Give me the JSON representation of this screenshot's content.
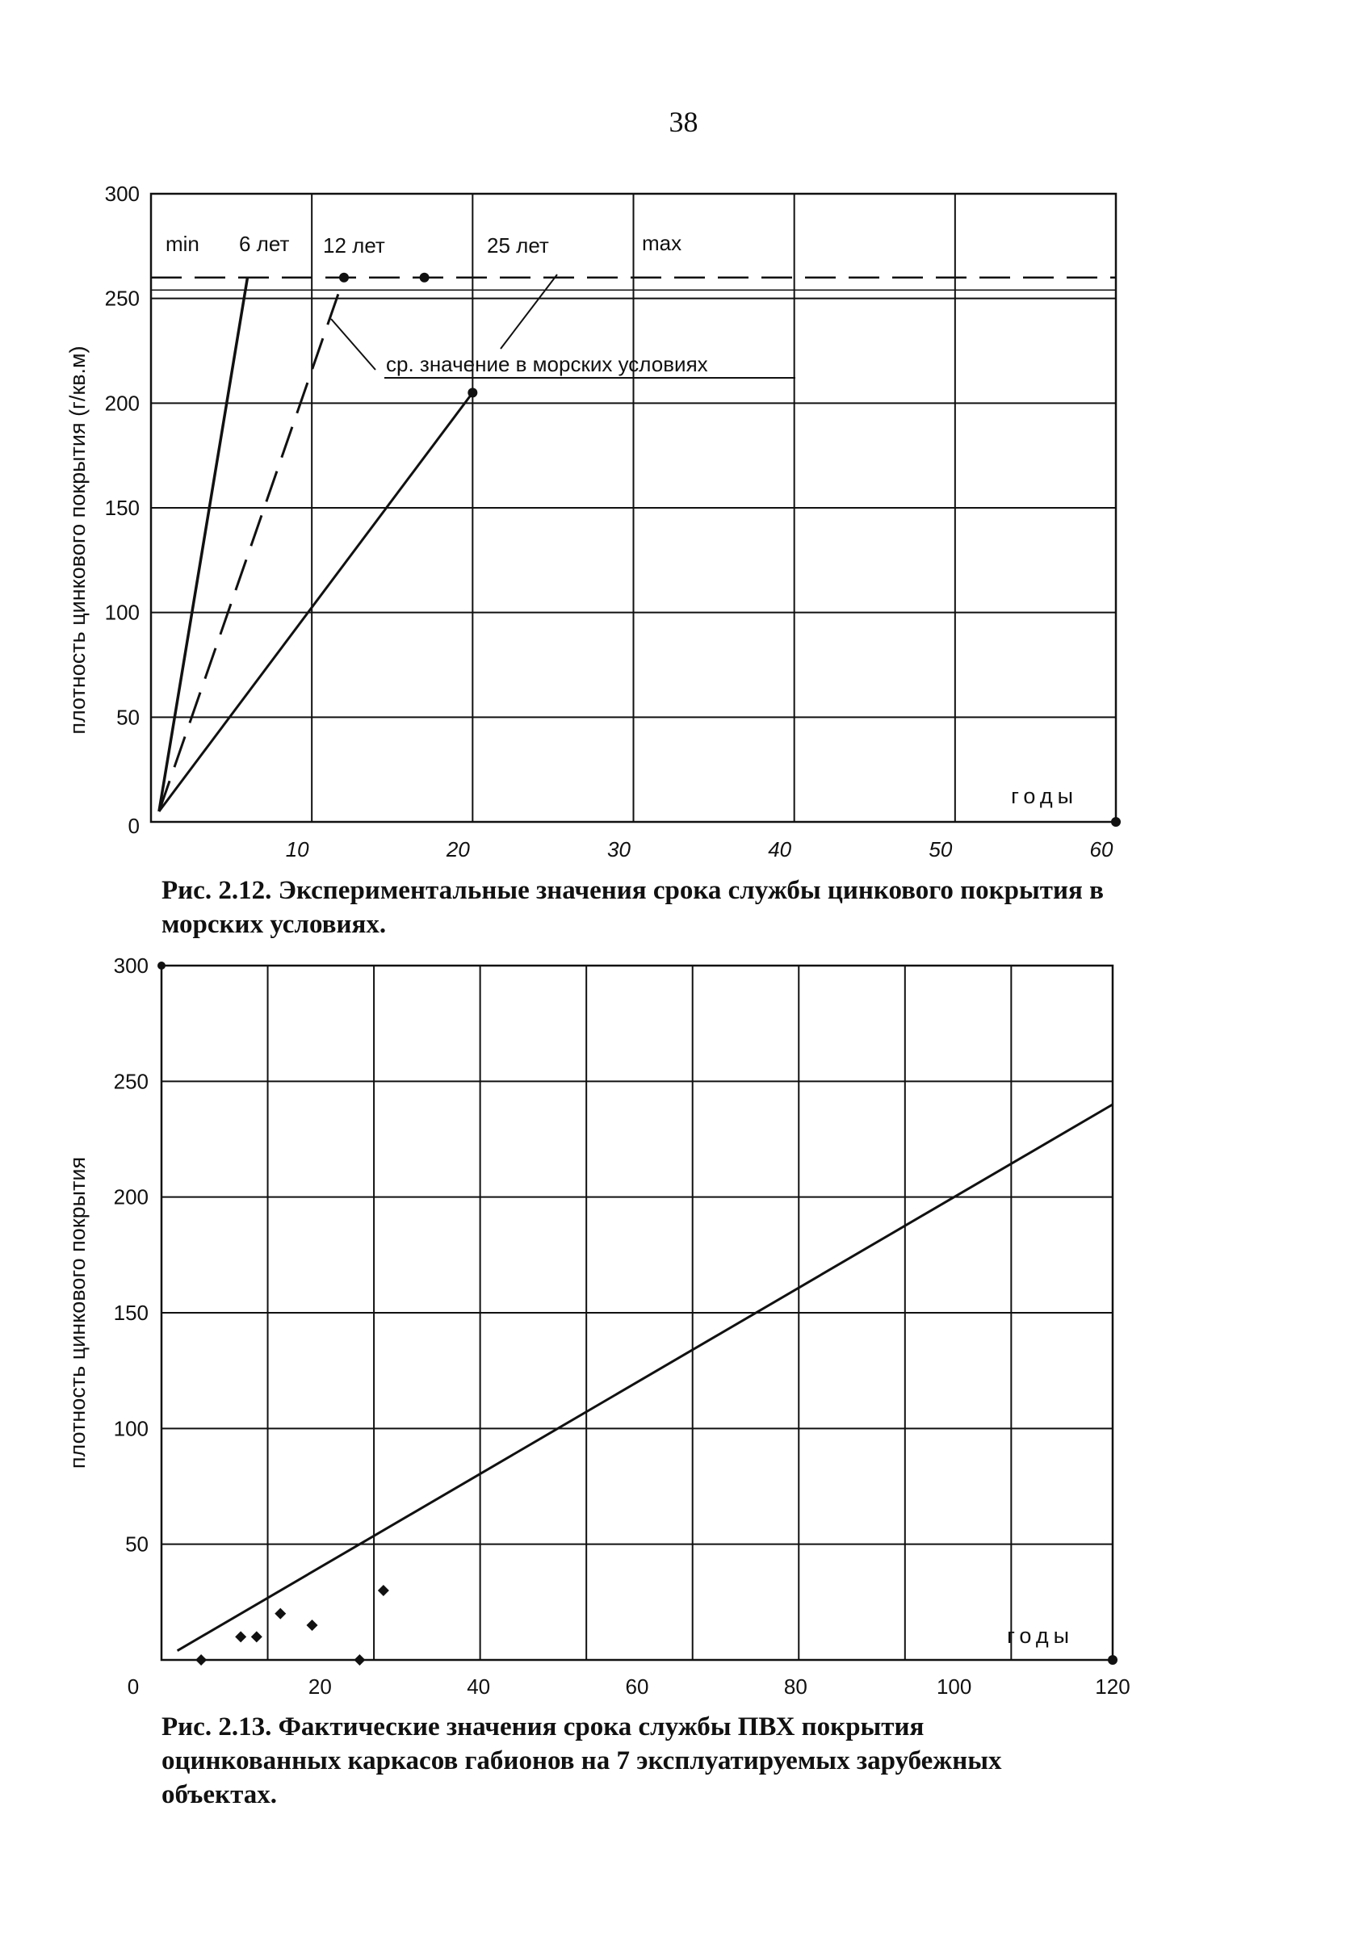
{
  "page": {
    "number": "38"
  },
  "captions": {
    "fig1": "Рис. 2.12. Экспериментальные значения срока службы цинкового покрытия в морских условиях.",
    "fig2": "Рис. 2.13. Фактические значения срока службы ПВХ покрытия оцинкованных каркасов габионов на 7 эксплуатируемых зарубежных объектах."
  },
  "chart_data": [
    {
      "type": "line",
      "ylabel": "плотность цинкового покрытия (г/кв.м)",
      "xlabel": "годы",
      "xlim": [
        0,
        60
      ],
      "ylim": [
        0,
        300
      ],
      "x_ticks": [
        "10",
        "20",
        "30",
        "40",
        "50",
        "60"
      ],
      "y_ticks": [
        "0",
        "50",
        "100",
        "150",
        "200",
        "250",
        "300"
      ],
      "grid": true,
      "annotations": {
        "min": "min",
        "y6": "6 лет",
        "y12": "12 лет",
        "y25": "25 лет",
        "max": "max",
        "avg": "ср. значение в морских условиях"
      },
      "series": [
        {
          "values": [
            [
              0.5,
              5
            ],
            [
              6,
              260
            ]
          ]
        },
        {
          "values": [
            [
              0.5,
              5
            ],
            [
              12,
              260
            ]
          ]
        },
        {
          "values": [
            [
              0.5,
              5
            ],
            [
              20,
              205
            ]
          ]
        },
        {
          "values": [
            [
              0,
              260
            ],
            [
              60,
              260
            ]
          ]
        }
      ],
      "markers": [
        [
          12,
          260
        ],
        [
          17,
          260
        ],
        [
          20,
          205
        ],
        [
          60,
          0
        ]
      ]
    },
    {
      "type": "scatter",
      "ylabel": "плотность цинкового покрытия",
      "xlabel": "годы",
      "xlim": [
        0,
        120
      ],
      "ylim": [
        0,
        300
      ],
      "x_ticks": [
        "0",
        "20",
        "40",
        "60",
        "80",
        "100",
        "120"
      ],
      "y_ticks": [
        "50",
        "100",
        "150",
        "200",
        "250",
        "300"
      ],
      "grid": true,
      "line": [
        [
          2,
          4
        ],
        [
          120,
          240
        ]
      ],
      "points": [
        [
          5,
          0
        ],
        [
          10,
          10
        ],
        [
          12,
          10
        ],
        [
          15,
          20
        ],
        [
          19,
          15
        ],
        [
          25,
          0
        ],
        [
          28,
          30
        ]
      ],
      "markers": [
        [
          120,
          0
        ]
      ]
    }
  ]
}
